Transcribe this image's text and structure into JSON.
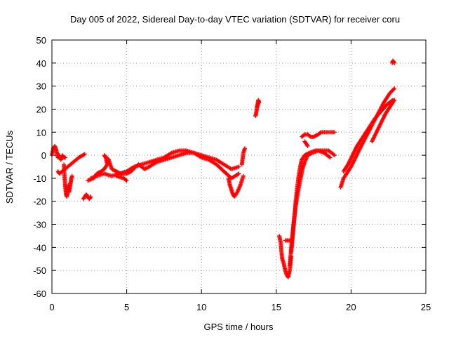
{
  "chart_data": {
    "type": "scatter",
    "title": "Day 005 of 2022, Sidereal Day-to-day VTEC variation (SDTVAR) for receiver coru",
    "xlabel": "GPS time / hours",
    "ylabel": "SDTVAR / TECUs",
    "xlim": [
      0,
      25
    ],
    "ylim": [
      -60,
      50
    ],
    "xticks": [
      0,
      5,
      10,
      15,
      20,
      25
    ],
    "yticks": [
      -60,
      -50,
      -40,
      -30,
      -20,
      -10,
      0,
      10,
      20,
      30,
      40,
      50
    ],
    "grid": true,
    "marker": "+",
    "color": "#ff0000",
    "segments": [
      {
        "name": "t0-early",
        "points": [
          [
            0.0,
            0
          ],
          [
            0.1,
            3
          ],
          [
            0.2,
            4
          ],
          [
            0.3,
            2
          ],
          [
            0.4,
            -1
          ],
          [
            0.5,
            0
          ],
          [
            0.6,
            -2
          ],
          [
            0.7,
            0
          ],
          [
            0.8,
            -1
          ],
          [
            0.9,
            -1
          ]
        ]
      },
      {
        "name": "t0-dip",
        "points": [
          [
            0.8,
            -4
          ],
          [
            0.85,
            -10
          ],
          [
            0.9,
            -14
          ],
          [
            0.95,
            -17
          ],
          [
            1.0,
            -18
          ],
          [
            1.05,
            -16
          ],
          [
            1.1,
            -13
          ]
        ]
      },
      {
        "name": "t0-rise",
        "points": [
          [
            1.15,
            -16
          ],
          [
            1.2,
            -14
          ],
          [
            1.25,
            -12
          ],
          [
            1.3,
            -10
          ],
          [
            1.35,
            -9
          ]
        ]
      },
      {
        "name": "t0-iso",
        "points": [
          [
            0.4,
            -7
          ],
          [
            0.5,
            -8
          ],
          [
            1.8,
            -1
          ],
          [
            2.2,
            0.5
          ]
        ]
      },
      {
        "name": "t2-low",
        "points": [
          [
            2.1,
            -19
          ],
          [
            2.2,
            -18
          ],
          [
            2.3,
            -17
          ],
          [
            2.4,
            -18
          ],
          [
            2.5,
            -19
          ],
          [
            2.6,
            -18
          ]
        ]
      },
      {
        "name": "t2-main",
        "points": [
          [
            2.4,
            -11
          ],
          [
            2.8,
            -10
          ],
          [
            3.0,
            -8
          ],
          [
            3.3,
            -7
          ],
          [
            3.5,
            -6
          ],
          [
            3.7,
            -4
          ],
          [
            3.6,
            -1
          ],
          [
            3.5,
            0
          ],
          [
            3.8,
            -2
          ],
          [
            4.0,
            -6
          ],
          [
            4.3,
            -7
          ],
          [
            4.6,
            -8
          ],
          [
            5.0,
            -8
          ],
          [
            5.3,
            -7
          ],
          [
            5.6,
            -5
          ],
          [
            5.8,
            -4
          ],
          [
            6.0,
            -5
          ],
          [
            6.2,
            -6
          ],
          [
            6.5,
            -5
          ],
          [
            7.0,
            -3
          ],
          [
            7.5,
            -2
          ],
          [
            8.0,
            -1
          ],
          [
            8.5,
            0
          ],
          [
            9.0,
            1
          ],
          [
            9.5,
            1
          ],
          [
            10.0,
            0
          ],
          [
            10.5,
            -1
          ],
          [
            11.0,
            -2
          ],
          [
            11.5,
            -4
          ],
          [
            12.0,
            -6
          ],
          [
            12.5,
            -5
          ]
        ]
      },
      {
        "name": "t2-second",
        "points": [
          [
            2.6,
            -10
          ],
          [
            3.0,
            -9
          ],
          [
            3.5,
            -8
          ],
          [
            4.0,
            -9
          ],
          [
            4.5,
            -8
          ],
          [
            5.0,
            -7
          ],
          [
            5.5,
            -5
          ],
          [
            6.0,
            -4
          ],
          [
            6.5,
            -3
          ],
          [
            7.0,
            -2
          ],
          [
            7.5,
            -1
          ],
          [
            8.0,
            1
          ],
          [
            8.5,
            2
          ],
          [
            9.0,
            2
          ],
          [
            9.5,
            1
          ],
          [
            10.0,
            -1
          ],
          [
            10.5,
            -2
          ],
          [
            11.0,
            -4
          ],
          [
            11.5,
            -7
          ],
          [
            12.0,
            -10
          ],
          [
            12.5,
            -8
          ]
        ]
      },
      {
        "name": "t4-iso",
        "points": [
          [
            4.3,
            -9
          ],
          [
            4.8,
            -10
          ],
          [
            5.0,
            -11
          ]
        ]
      },
      {
        "name": "t12-drop",
        "points": [
          [
            11.8,
            -10
          ],
          [
            11.9,
            -13
          ],
          [
            12.0,
            -15
          ],
          [
            12.1,
            -17
          ],
          [
            12.2,
            -18
          ],
          [
            12.4,
            -16
          ],
          [
            12.6,
            -13
          ],
          [
            12.8,
            -9
          ]
        ]
      },
      {
        "name": "t12-up",
        "points": [
          [
            12.7,
            -4
          ],
          [
            12.8,
            1
          ],
          [
            12.9,
            3
          ]
        ]
      },
      {
        "name": "t13",
        "points": [
          [
            13.6,
            17
          ],
          [
            13.65,
            18
          ],
          [
            13.7,
            20
          ],
          [
            13.75,
            22
          ],
          [
            13.8,
            24
          ],
          [
            13.85,
            23
          ],
          [
            13.7,
            21
          ]
        ]
      },
      {
        "name": "t15-low",
        "points": [
          [
            15.2,
            -35
          ],
          [
            15.3,
            -38
          ],
          [
            15.35,
            -42
          ],
          [
            15.4,
            -45
          ],
          [
            15.5,
            -47
          ],
          [
            15.6,
            -50
          ],
          [
            15.7,
            -52
          ],
          [
            15.8,
            -53
          ],
          [
            15.9,
            -50
          ],
          [
            16.0,
            -44
          ]
        ]
      },
      {
        "name": "t15-mid",
        "points": [
          [
            15.6,
            -37
          ],
          [
            15.8,
            -37
          ],
          [
            16.0,
            -37
          ]
        ]
      },
      {
        "name": "t16-rise-a",
        "points": [
          [
            16.0,
            -42
          ],
          [
            16.1,
            -35
          ],
          [
            16.2,
            -28
          ],
          [
            16.3,
            -20
          ],
          [
            16.4,
            -14
          ],
          [
            16.5,
            -9
          ],
          [
            16.6,
            -5
          ],
          [
            16.7,
            -2
          ],
          [
            16.9,
            0
          ],
          [
            17.2,
            1
          ],
          [
            17.6,
            2
          ],
          [
            18.0,
            2
          ],
          [
            18.5,
            2
          ],
          [
            18.9,
            0
          ]
        ]
      },
      {
        "name": "t16-rise-b",
        "points": [
          [
            15.9,
            -48
          ],
          [
            16.0,
            -40
          ],
          [
            16.15,
            -30
          ],
          [
            16.3,
            -22
          ],
          [
            16.45,
            -16
          ],
          [
            16.6,
            -11
          ],
          [
            16.75,
            -6
          ],
          [
            16.9,
            -3
          ],
          [
            17.1,
            0
          ],
          [
            17.4,
            1
          ],
          [
            17.8,
            2
          ],
          [
            18.2,
            1
          ],
          [
            18.6,
            -1
          ]
        ]
      },
      {
        "name": "t16-upper",
        "points": [
          [
            16.7,
            8
          ],
          [
            16.9,
            9
          ],
          [
            17.1,
            9
          ],
          [
            17.3,
            8
          ],
          [
            17.5,
            8
          ],
          [
            17.8,
            9
          ],
          [
            18.0,
            10
          ],
          [
            18.3,
            10
          ],
          [
            18.6,
            10
          ],
          [
            18.9,
            10
          ]
        ]
      },
      {
        "name": "t16-upper-dip",
        "points": [
          [
            16.9,
            6
          ],
          [
            17.0,
            5
          ],
          [
            17.1,
            4
          ]
        ]
      },
      {
        "name": "t19-a",
        "points": [
          [
            19.3,
            -14
          ],
          [
            19.5,
            -10
          ],
          [
            19.7,
            -8
          ],
          [
            20.0,
            -5
          ],
          [
            20.3,
            -1
          ],
          [
            20.6,
            3
          ],
          [
            21.0,
            8
          ],
          [
            21.4,
            13
          ],
          [
            21.8,
            18
          ],
          [
            22.2,
            23
          ],
          [
            22.6,
            27
          ],
          [
            22.9,
            29
          ]
        ]
      },
      {
        "name": "t19-b",
        "points": [
          [
            19.5,
            -7
          ],
          [
            19.8,
            -4
          ],
          [
            20.1,
            0
          ],
          [
            20.4,
            4
          ],
          [
            20.8,
            8
          ],
          [
            21.2,
            12
          ],
          [
            21.6,
            16
          ],
          [
            22.0,
            19
          ],
          [
            22.4,
            22
          ],
          [
            22.8,
            24
          ]
        ]
      },
      {
        "name": "t21-c",
        "points": [
          [
            21.4,
            6
          ],
          [
            21.7,
            10
          ],
          [
            22.0,
            14
          ],
          [
            22.3,
            18
          ],
          [
            22.6,
            21
          ],
          [
            22.9,
            24
          ]
        ]
      },
      {
        "name": "t22-iso",
        "points": [
          [
            22.75,
            40
          ],
          [
            22.8,
            41
          ],
          [
            22.9,
            40
          ]
        ]
      }
    ]
  }
}
